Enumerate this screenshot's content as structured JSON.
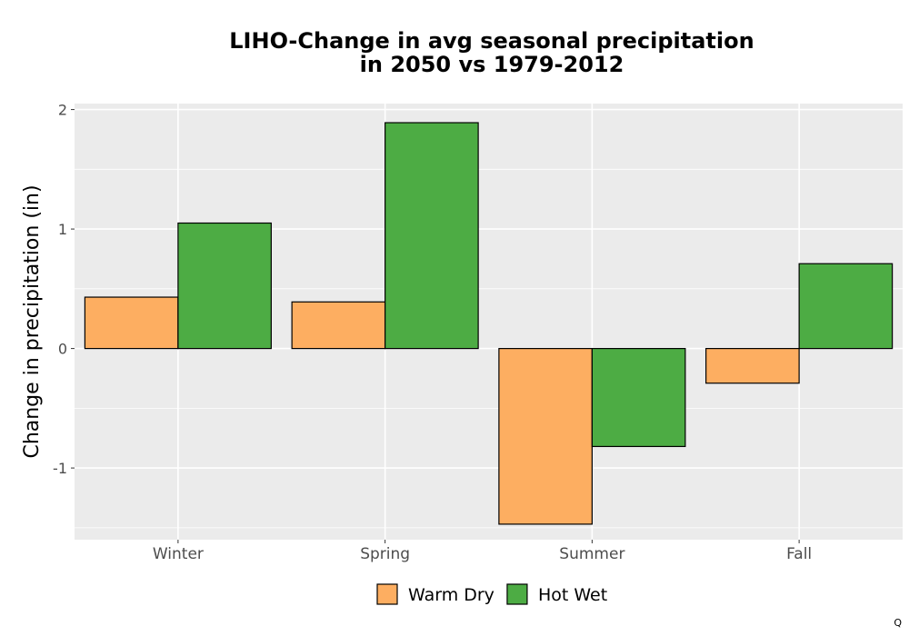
{
  "chart_data": {
    "type": "bar",
    "title_lines": [
      "LIHO-Change in avg seasonal precipitation",
      "in 2050 vs 1979-2012"
    ],
    "xlabel": "",
    "ylabel": "Change in precipitation (in)",
    "categories": [
      "Winter",
      "Spring",
      "Summer",
      "Fall"
    ],
    "series": [
      {
        "name": "Warm Dry",
        "color": "#FDAE61",
        "values": [
          0.43,
          0.39,
          -1.47,
          -0.29
        ]
      },
      {
        "name": "Hot Wet",
        "color": "#4DAC44",
        "values": [
          1.05,
          1.89,
          -0.82,
          0.71
        ]
      }
    ],
    "ylim": [
      -1.6,
      2.05
    ],
    "yticks": [
      -1,
      0,
      1,
      2
    ],
    "ytick_labels": [
      "-1",
      "0",
      "1",
      "2"
    ],
    "grid": true,
    "legend_position": "bottom"
  },
  "corner_text": "Q"
}
